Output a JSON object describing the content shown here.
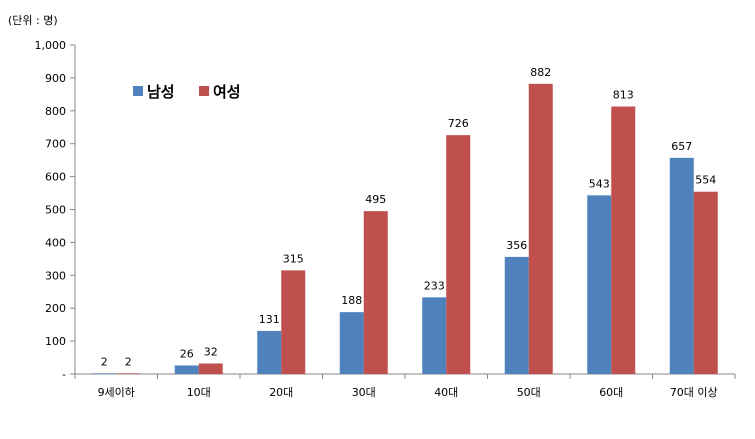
{
  "chart_data": {
    "type": "bar",
    "unit_label": "(단위 : 명)",
    "categories": [
      "9세이하",
      "10대",
      "20대",
      "30대",
      "40대",
      "50대",
      "60대",
      "70대 이상"
    ],
    "series": [
      {
        "name": "남성",
        "color": "#4F81BD",
        "values": [
          2,
          26,
          131,
          188,
          233,
          356,
          543,
          657
        ]
      },
      {
        "name": "여성",
        "color": "#C0504D",
        "values": [
          2,
          32,
          315,
          495,
          726,
          882,
          813,
          554
        ]
      }
    ],
    "ylim": [
      0,
      1000
    ],
    "yticks": [
      0,
      100,
      200,
      300,
      400,
      500,
      600,
      700,
      800,
      900,
      1000
    ],
    "ytick_labels": [
      "-",
      "100",
      "200",
      "300",
      "400",
      "500",
      "600",
      "700",
      "800",
      "900",
      "1,000"
    ],
    "legend_position": "top-left",
    "grid": false,
    "xlabel": "",
    "ylabel": ""
  }
}
